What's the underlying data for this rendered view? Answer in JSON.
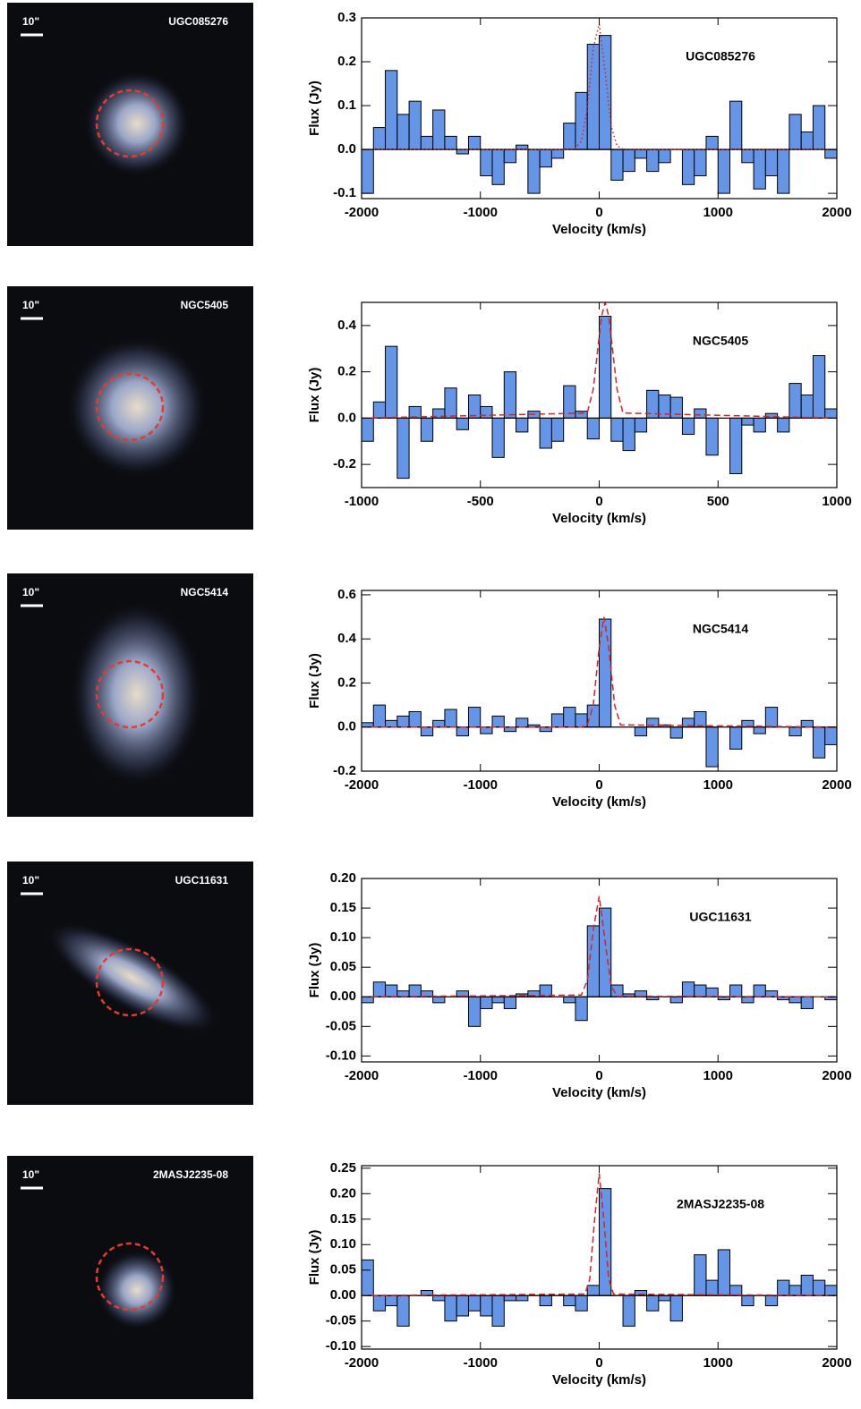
{
  "images": [
    {
      "scale_label": "10\"",
      "name": "UGC085276"
    },
    {
      "scale_label": "10\"",
      "name": "NGC5405"
    },
    {
      "scale_label": "10\"",
      "name": "NGC5414"
    },
    {
      "scale_label": "10\"",
      "name": "UGC11631"
    },
    {
      "scale_label": "10\"",
      "name": "2MASJ2235-08"
    }
  ],
  "chart_data": [
    {
      "type": "histogram",
      "annotation": "UGC085276",
      "xlabel": "Velocity (km/s)",
      "ylabel": "Flux (Jy)",
      "color": "#6495e6",
      "bins": [
        -2000,
        -1900,
        -1800,
        -1700,
        -1600,
        -1500,
        -1400,
        -1300,
        -1200,
        -1100,
        -1000,
        -900,
        -800,
        -700,
        -600,
        -500,
        -400,
        -300,
        -200,
        -100,
        0,
        100,
        200,
        300,
        400,
        500,
        600,
        700,
        800,
        900,
        1000,
        1100,
        1200,
        1300,
        1400,
        1500,
        1600,
        1700,
        1800,
        1900,
        2000
      ],
      "values": [
        -0.1,
        0.05,
        0.18,
        0.08,
        0.11,
        0.03,
        0.09,
        0.03,
        -0.01,
        0.03,
        -0.06,
        -0.08,
        -0.03,
        0.01,
        -0.1,
        -0.04,
        -0.02,
        0.06,
        0.13,
        0.24,
        0.26,
        -0.07,
        -0.05,
        -0.02,
        -0.05,
        -0.03,
        0.0,
        -0.08,
        -0.06,
        0.03,
        -0.1,
        0.11,
        -0.03,
        -0.09,
        -0.06,
        -0.1,
        0.08,
        0.04,
        0.1,
        -0.02
      ],
      "fit": {
        "color": "#e02020",
        "dash": "dotted",
        "x": [
          -2000,
          -300,
          -200,
          -150,
          -100,
          -50,
          0,
          50,
          100,
          150,
          200,
          300,
          2000
        ],
        "values": [
          0,
          0,
          0.002,
          0.019,
          0.094,
          0.232,
          0.286,
          0.176,
          0.054,
          0.008,
          0.001,
          0,
          0
        ]
      },
      "xlim": [
        -2000,
        2000
      ],
      "xticks": [
        -2000,
        -1000,
        0,
        1000,
        2000
      ],
      "ylim": [
        -0.112,
        0.3
      ],
      "yticks": [
        -0.1,
        {
          "value": 0,
          "label": "0.0"
        },
        0.1,
        0.2,
        0.3
      ]
    },
    {
      "type": "histogram",
      "annotation": "NGC5405",
      "xlabel": "Velocity (km/s)",
      "ylabel": "Flux (Jy)",
      "color": "#6495e6",
      "bins": [
        -1000,
        -950,
        -900,
        -850,
        -800,
        -750,
        -700,
        -650,
        -600,
        -550,
        -500,
        -450,
        -400,
        -350,
        -300,
        -250,
        -200,
        -150,
        -100,
        -50,
        0,
        50,
        100,
        150,
        200,
        250,
        300,
        350,
        400,
        450,
        500,
        550,
        600,
        650,
        700,
        750,
        800,
        850,
        900,
        950,
        1000
      ],
      "values": [
        -0.1,
        0.07,
        0.31,
        -0.26,
        0.05,
        -0.1,
        0.04,
        0.13,
        -0.05,
        0.1,
        0.05,
        -0.17,
        0.2,
        -0.06,
        0.03,
        -0.13,
        -0.1,
        0.14,
        0.03,
        -0.09,
        0.44,
        -0.1,
        -0.14,
        -0.06,
        0.12,
        0.1,
        0.09,
        -0.07,
        0.04,
        -0.16,
        0.0,
        -0.24,
        -0.03,
        -0.06,
        0.02,
        -0.06,
        0.15,
        0.1,
        0.27,
        0.04
      ],
      "fit": {
        "color": "#e02020",
        "dash": "dashed",
        "x": [
          -1000,
          -50,
          -25,
          0,
          10,
          25,
          40,
          50,
          75,
          100,
          1000
        ],
        "values": [
          0,
          0.022,
          0.125,
          0.353,
          0.44,
          0.5,
          0.44,
          0.353,
          0.125,
          0.022,
          0
        ]
      },
      "xlim": [
        -1000,
        1000
      ],
      "xticks": [
        -1000,
        -500,
        0,
        500,
        1000
      ],
      "ylim": [
        -0.3,
        0.5
      ],
      "yticks": [
        -0.2,
        {
          "value": 0,
          "label": "0.0"
        },
        0.2,
        0.4
      ]
    },
    {
      "type": "histogram",
      "annotation": "NGC5414",
      "xlabel": "Velocity (km/s)",
      "ylabel": "Flux (Jy)",
      "color": "#6495e6",
      "bins": [
        -2000,
        -1900,
        -1800,
        -1700,
        -1600,
        -1500,
        -1400,
        -1300,
        -1200,
        -1100,
        -1000,
        -900,
        -800,
        -700,
        -600,
        -500,
        -400,
        -300,
        -200,
        -100,
        0,
        100,
        200,
        300,
        400,
        500,
        600,
        700,
        800,
        900,
        1000,
        1100,
        1200,
        1300,
        1400,
        1500,
        1600,
        1700,
        1800,
        1900,
        2000
      ],
      "values": [
        0.02,
        0.1,
        0.03,
        0.05,
        0.07,
        -0.04,
        0.03,
        0.08,
        -0.04,
        0.09,
        -0.03,
        0.05,
        -0.02,
        0.04,
        0.01,
        -0.02,
        0.06,
        0.09,
        0.06,
        0.1,
        0.49,
        0.0,
        0.0,
        -0.04,
        0.04,
        0.01,
        -0.05,
        0.04,
        0.07,
        -0.18,
        0.0,
        -0.1,
        0.03,
        -0.03,
        0.09,
        0.0,
        -0.04,
        0.03,
        -0.14,
        -0.08
      ],
      "fit": {
        "color": "#e02020",
        "dash": "dashed",
        "x": [
          -2000,
          -150,
          -100,
          -50,
          0,
          40,
          80,
          130,
          180,
          2000
        ],
        "values": [
          0,
          0,
          0.01,
          0.099,
          0.363,
          0.5,
          0.363,
          0.099,
          0.01,
          0
        ]
      },
      "xlim": [
        -2000,
        2000
      ],
      "xticks": [
        -2000,
        -1000,
        0,
        1000,
        2000
      ],
      "ylim": [
        -0.2,
        0.62
      ],
      "yticks": [
        -0.2,
        {
          "value": 0,
          "label": "0.0"
        },
        0.2,
        0.4,
        0.6
      ]
    },
    {
      "type": "histogram",
      "annotation": "UGC11631",
      "xlabel": "Velocity (km/s)",
      "ylabel": "Flux (Jy)",
      "color": "#6495e6",
      "bins": [
        -2000,
        -1900,
        -1800,
        -1700,
        -1600,
        -1500,
        -1400,
        -1300,
        -1200,
        -1100,
        -1000,
        -900,
        -800,
        -700,
        -600,
        -500,
        -400,
        -300,
        -200,
        -100,
        0,
        100,
        200,
        300,
        400,
        500,
        600,
        700,
        800,
        900,
        1000,
        1100,
        1200,
        1300,
        1400,
        1500,
        1600,
        1700,
        1800,
        1900,
        2000
      ],
      "values": [
        -0.01,
        0.025,
        0.02,
        0.01,
        0.02,
        0.01,
        -0.01,
        0.0,
        0.01,
        -0.05,
        -0.02,
        -0.01,
        -0.02,
        0.005,
        0.01,
        0.02,
        0.0,
        -0.01,
        -0.04,
        0.12,
        0.15,
        0.02,
        0.005,
        0.01,
        -0.005,
        0.0,
        -0.01,
        0.025,
        0.02,
        0.015,
        -0.005,
        0.02,
        -0.01,
        0.02,
        0.01,
        -0.005,
        -0.01,
        -0.02,
        0.0,
        -0.005
      ],
      "fit": {
        "color": "#e02020",
        "dash": "dashed",
        "x": [
          -2000,
          -150,
          -100,
          -50,
          0,
          50,
          100,
          150,
          2000
        ],
        "values": [
          0,
          0.003,
          0.028,
          0.113,
          0.17,
          0.093,
          0.019,
          0.001,
          0
        ]
      },
      "xlim": [
        -2000,
        2000
      ],
      "xticks": [
        -2000,
        -1000,
        0,
        1000,
        2000
      ],
      "ylim": [
        -0.11,
        0.2
      ],
      "yticks": [
        {
          "value": -0.1,
          "label": "-0.10"
        },
        {
          "value": -0.05,
          "label": "-0.05"
        },
        {
          "value": 0,
          "label": "0.00"
        },
        {
          "value": 0.05,
          "label": "0.05"
        },
        {
          "value": 0.1,
          "label": "0.10"
        },
        {
          "value": 0.15,
          "label": "0.15"
        },
        {
          "value": 0.2,
          "label": "0.20"
        }
      ]
    },
    {
      "type": "histogram",
      "annotation": "2MASJ2235-08",
      "xlabel": "Velocity (km/s)",
      "ylabel": "Flux (Jy)",
      "color": "#6495e6",
      "bins": [
        -2000,
        -1900,
        -1800,
        -1700,
        -1600,
        -1500,
        -1400,
        -1300,
        -1200,
        -1100,
        -1000,
        -900,
        -800,
        -700,
        -600,
        -500,
        -400,
        -300,
        -200,
        -100,
        0,
        100,
        200,
        300,
        400,
        500,
        600,
        700,
        800,
        900,
        1000,
        1100,
        1200,
        1300,
        1400,
        1500,
        1600,
        1700,
        1800,
        1900,
        2000
      ],
      "values": [
        0.07,
        -0.03,
        -0.02,
        -0.06,
        0.0,
        0.01,
        -0.01,
        -0.05,
        -0.04,
        -0.03,
        -0.04,
        -0.06,
        -0.01,
        -0.01,
        0.0,
        -0.02,
        0.0,
        -0.02,
        -0.03,
        0.02,
        0.21,
        0.0,
        -0.06,
        0.01,
        -0.03,
        -0.01,
        -0.05,
        0.0,
        0.08,
        0.03,
        0.09,
        0.02,
        -0.02,
        0.0,
        -0.02,
        0.03,
        0.02,
        0.04,
        0.03,
        0.02
      ],
      "fit": {
        "color": "#e02020",
        "dash": "dashed",
        "x": [
          -2000,
          -120,
          -80,
          -40,
          0,
          40,
          80,
          120,
          2000
        ],
        "values": [
          0,
          0.003,
          0.032,
          0.146,
          0.24,
          0.146,
          0.032,
          0.003,
          0
        ]
      },
      "xlim": [
        -2000,
        2000
      ],
      "xticks": [
        -2000,
        -1000,
        0,
        1000,
        2000
      ],
      "ylim": [
        -0.105,
        0.255
      ],
      "yticks": [
        {
          "value": -0.1,
          "label": "-0.10"
        },
        {
          "value": -0.05,
          "label": "-0.05"
        },
        {
          "value": 0,
          "label": "0.00"
        },
        {
          "value": 0.05,
          "label": "0.05"
        },
        {
          "value": 0.1,
          "label": "0.10"
        },
        {
          "value": 0.15,
          "label": "0.15"
        },
        {
          "value": 0.2,
          "label": "0.20"
        },
        {
          "value": 0.25,
          "label": "0.25"
        }
      ]
    }
  ]
}
